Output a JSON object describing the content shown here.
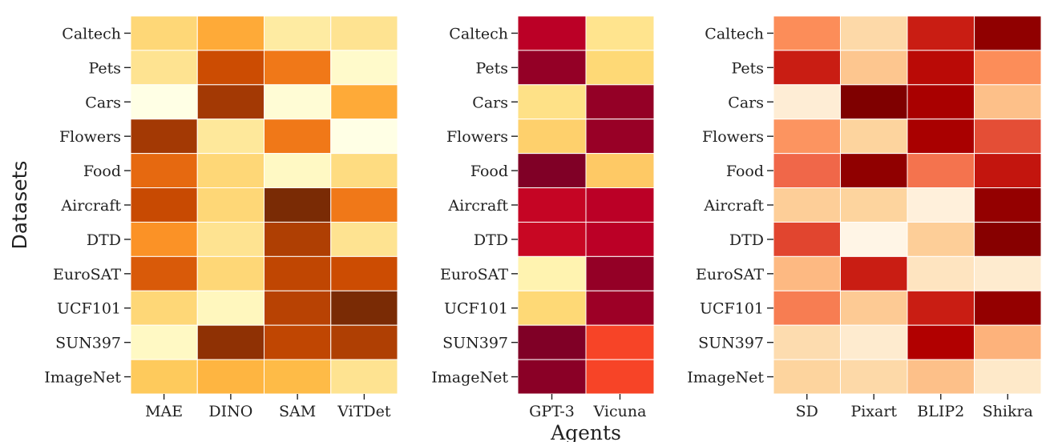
{
  "chart_data": [
    {
      "type": "heatmap",
      "rows": [
        "Caltech",
        "Pets",
        "Cars",
        "Flowers",
        "Food",
        "Aircraft",
        "DTD",
        "EuroSAT",
        "UCF101",
        "SUN397",
        "ImageNet"
      ],
      "columns": [
        "MAE",
        "DINO",
        "SAM",
        "ViTDet"
      ],
      "colormap": "YlOrBr",
      "values": [
        [
          0.3,
          0.45,
          0.2,
          0.25
        ],
        [
          0.25,
          0.75,
          0.6,
          0.08
        ],
        [
          0.0,
          0.85,
          0.05,
          0.45
        ],
        [
          0.85,
          0.22,
          0.6,
          0.0
        ],
        [
          0.65,
          0.3,
          0.1,
          0.28
        ],
        [
          0.76,
          0.3,
          0.95,
          0.6
        ],
        [
          0.52,
          0.25,
          0.82,
          0.25
        ],
        [
          0.7,
          0.3,
          0.78,
          0.75
        ],
        [
          0.3,
          0.12,
          0.8,
          0.95
        ],
        [
          0.1,
          0.9,
          0.78,
          0.82
        ],
        [
          0.35,
          0.42,
          0.4,
          0.25
        ]
      ],
      "ylabel": "Datasets"
    },
    {
      "type": "heatmap",
      "rows": [
        "Caltech",
        "Pets",
        "Cars",
        "Flowers",
        "Food",
        "Aircraft",
        "DTD",
        "EuroSAT",
        "UCF101",
        "SUN397",
        "ImageNet"
      ],
      "columns": [
        "GPT-3",
        "Vicuna"
      ],
      "colormap": "YlOrRd",
      "values": [
        [
          0.88,
          0.18
        ],
        [
          0.96,
          0.25
        ],
        [
          0.2,
          0.96
        ],
        [
          0.28,
          0.95
        ],
        [
          1.0,
          0.3
        ],
        [
          0.85,
          0.88
        ],
        [
          0.84,
          0.88
        ],
        [
          0.08,
          0.96
        ],
        [
          0.25,
          0.94
        ],
        [
          1.0,
          0.65
        ],
        [
          0.98,
          0.65
        ]
      ],
      "xlabel": "Agents"
    },
    {
      "type": "heatmap",
      "rows": [
        "Caltech",
        "Pets",
        "Cars",
        "Flowers",
        "Food",
        "Aircraft",
        "DTD",
        "EuroSAT",
        "UCF101",
        "SUN397",
        "ImageNet"
      ],
      "columns": [
        "SD",
        "Pixart",
        "BLIP2",
        "Shikra"
      ],
      "colormap": "OrRd",
      "values": [
        [
          0.5,
          0.22,
          0.8,
          0.96
        ],
        [
          0.8,
          0.32,
          0.85,
          0.5
        ],
        [
          0.08,
          1.0,
          0.9,
          0.35
        ],
        [
          0.48,
          0.25,
          0.9,
          0.68
        ],
        [
          0.62,
          0.96,
          0.58,
          0.82
        ],
        [
          0.28,
          0.25,
          0.06,
          0.95
        ],
        [
          0.7,
          0.02,
          0.28,
          0.98
        ],
        [
          0.38,
          0.8,
          0.15,
          0.1
        ],
        [
          0.55,
          0.3,
          0.8,
          0.95
        ],
        [
          0.2,
          0.1,
          0.88,
          0.4
        ],
        [
          0.25,
          0.22,
          0.35,
          0.12
        ]
      ]
    }
  ]
}
